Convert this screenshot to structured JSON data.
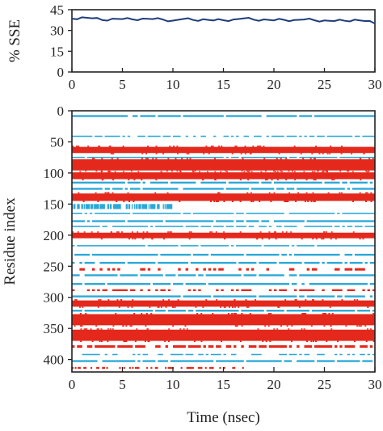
{
  "chart_data": [
    {
      "type": "line",
      "ylabel": "% SSE",
      "xlim": [
        0,
        30
      ],
      "ylim": [
        0,
        45
      ],
      "xticks": [
        "0",
        "5",
        "10",
        "15",
        "20",
        "25",
        "30"
      ],
      "yticks": [
        "0",
        "15",
        "30",
        "45"
      ],
      "grid": false,
      "color": "#1f3d7a",
      "series": [
        {
          "x": [
            0,
            1,
            2,
            3,
            4,
            5,
            6,
            7,
            8,
            9,
            10,
            11,
            12,
            13,
            14,
            15,
            16,
            17,
            18,
            19,
            20,
            21,
            22,
            23,
            24,
            25,
            26,
            27,
            28,
            29,
            30
          ],
          "values": [
            38.5,
            39.5,
            38.8,
            37.5,
            38.5,
            38.2,
            38.0,
            38.6,
            38.2,
            37.9,
            37.1,
            38.3,
            37.6,
            38.1,
            37.2,
            37.4,
            37.9,
            38.7,
            37.8,
            38.0,
            37.3,
            37.7,
            37.5,
            37.9,
            37.4,
            37.2,
            36.8,
            37.0,
            37.8,
            36.8,
            35.0
          ]
        }
      ]
    },
    {
      "type": "heatmap",
      "xlabel": "Time (nsec)",
      "ylabel": "Residue index",
      "xlim": [
        0,
        30
      ],
      "ylim": [
        420,
        0
      ],
      "xticks": [
        "0",
        "5",
        "10",
        "15",
        "20",
        "25",
        "30"
      ],
      "yticks": [
        "0",
        "50",
        "100",
        "150",
        "200",
        "250",
        "300",
        "350",
        "400"
      ],
      "grid": false,
      "colors": {
        "helix": "#e4281c",
        "strand": "#29a8d8"
      },
      "bands": [
        {
          "type": "strand",
          "start": 7,
          "end": 10,
          "t0": 0,
          "t1": 30,
          "coverage": 0.9
        },
        {
          "type": "strand",
          "start": 40,
          "end": 42,
          "t0": 0,
          "t1": 30,
          "coverage": 0.6
        },
        {
          "type": "helix",
          "start": 58,
          "end": 68,
          "t0": 0,
          "t1": 30,
          "coverage": 1
        },
        {
          "type": "strand",
          "start": 74,
          "end": 76,
          "t0": 0,
          "t1": 30,
          "coverage": 0.9
        },
        {
          "type": "helix",
          "start": 78,
          "end": 96,
          "t0": 0,
          "t1": 30,
          "coverage": 1
        },
        {
          "type": "helix",
          "start": 99,
          "end": 110,
          "t0": 0,
          "t1": 30,
          "coverage": 1
        },
        {
          "type": "strand",
          "start": 114,
          "end": 117,
          "t0": 0,
          "t1": 30,
          "coverage": 0.9
        },
        {
          "type": "strand",
          "start": 124,
          "end": 127,
          "t0": 0,
          "t1": 30,
          "coverage": 0.9
        },
        {
          "type": "helix",
          "start": 133,
          "end": 145,
          "t0": 0,
          "t1": 30,
          "coverage": 1
        },
        {
          "type": "strand",
          "start": 150,
          "end": 158,
          "t0": 0,
          "t1": 10,
          "coverage": 0.6
        },
        {
          "type": "strand",
          "start": 164,
          "end": 166,
          "t0": 0,
          "t1": 30,
          "coverage": 0.9
        },
        {
          "type": "strand",
          "start": 176,
          "end": 179,
          "t0": 0,
          "t1": 30,
          "coverage": 0.9
        },
        {
          "type": "strand",
          "start": 185,
          "end": 187,
          "t0": 0,
          "t1": 30,
          "coverage": 0.8
        },
        {
          "type": "helix",
          "start": 196,
          "end": 205,
          "t0": 0,
          "t1": 30,
          "coverage": 1
        },
        {
          "type": "strand",
          "start": 216,
          "end": 218,
          "t0": 0,
          "t1": 30,
          "coverage": 0.9
        },
        {
          "type": "strand",
          "start": 230,
          "end": 233,
          "t0": 0,
          "t1": 30,
          "coverage": 0.9
        },
        {
          "type": "strand",
          "start": 243,
          "end": 246,
          "t0": 0,
          "t1": 30,
          "coverage": 0.9
        },
        {
          "type": "helix",
          "start": 253,
          "end": 257,
          "t0": 0,
          "t1": 30,
          "coverage": 0.3
        },
        {
          "type": "strand",
          "start": 263,
          "end": 266,
          "t0": 0,
          "t1": 30,
          "coverage": 0.9
        },
        {
          "type": "strand",
          "start": 277,
          "end": 280,
          "t0": 0,
          "t1": 30,
          "coverage": 0.9
        },
        {
          "type": "helix",
          "start": 287,
          "end": 290,
          "t0": 0,
          "t1": 30,
          "coverage": 0.4
        },
        {
          "type": "strand",
          "start": 297,
          "end": 300,
          "t0": 0,
          "t1": 30,
          "coverage": 0.9
        },
        {
          "type": "helix",
          "start": 305,
          "end": 315,
          "t0": 0,
          "t1": 30,
          "coverage": 1
        },
        {
          "type": "strand",
          "start": 320,
          "end": 323,
          "t0": 0,
          "t1": 30,
          "coverage": 0.9
        },
        {
          "type": "helix",
          "start": 327,
          "end": 345,
          "t0": 0,
          "t1": 30,
          "coverage": 1
        },
        {
          "type": "helix",
          "start": 352,
          "end": 370,
          "t0": 0,
          "t1": 30,
          "coverage": 1
        },
        {
          "type": "helix",
          "start": 377,
          "end": 381,
          "t0": 0,
          "t1": 30,
          "coverage": 0.7
        },
        {
          "type": "strand",
          "start": 391,
          "end": 393,
          "t0": 0,
          "t1": 30,
          "coverage": 0.5
        },
        {
          "type": "strand",
          "start": 401,
          "end": 404,
          "t0": 0,
          "t1": 30,
          "coverage": 0.9
        },
        {
          "type": "helix",
          "start": 412,
          "end": 415,
          "t0": 0,
          "t1": 17,
          "coverage": 0.4
        }
      ]
    }
  ]
}
